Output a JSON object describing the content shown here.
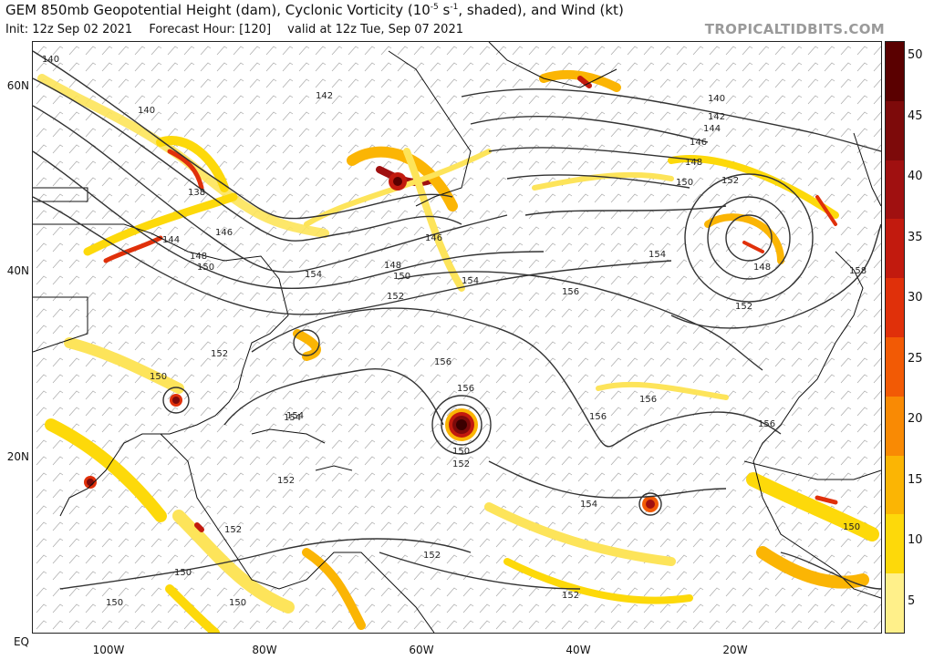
{
  "header": {
    "title_main": "GEM 850mb Geopotential Height (dam), Cyclonic Vorticity (10",
    "title_exp": "-5",
    "title_unit": " s",
    "title_exp2": "-1",
    "title_tail": ", shaded), and Wind (kt)",
    "init": "Init: 12z Sep 02 2021",
    "forecast_hour": "Forecast Hour: [120]",
    "valid": "valid at 12z Tue, Sep 07 2021",
    "source": "TROPICALTIDBITS.COM"
  },
  "axes": {
    "lat_labels": [
      "60N",
      "40N",
      "20N",
      "EQ"
    ],
    "lon_labels": [
      "100W",
      "80W",
      "60W",
      "40W",
      "20W"
    ]
  },
  "colorbar": {
    "labels": [
      "50",
      "45",
      "40",
      "35",
      "30",
      "25",
      "20",
      "15",
      "10",
      "5"
    ],
    "colors": [
      "#5a0000",
      "#7d0a0a",
      "#a01010",
      "#c21a0e",
      "#e0300a",
      "#f25a05",
      "#f98a04",
      "#fbb504",
      "#fdd90a",
      "#fff08a"
    ]
  },
  "contours": {
    "color": "#333333",
    "labels": [
      "140",
      "142",
      "140",
      "138",
      "144",
      "146",
      "148",
      "150",
      "152",
      "154",
      "156",
      "146",
      "148",
      "150",
      "152",
      "154",
      "156",
      "150",
      "152",
      "148",
      "152",
      "156",
      "158",
      "154",
      "156",
      "154",
      "150",
      "152",
      "154",
      "152",
      "150",
      "152",
      "150",
      "150",
      "150",
      "152",
      "152",
      "154",
      "156",
      "156",
      "140",
      "142",
      "144",
      "146",
      "148",
      "150"
    ]
  },
  "features": {
    "hurricane_center_label_a": "150",
    "hurricane_center_label_b": "152"
  }
}
